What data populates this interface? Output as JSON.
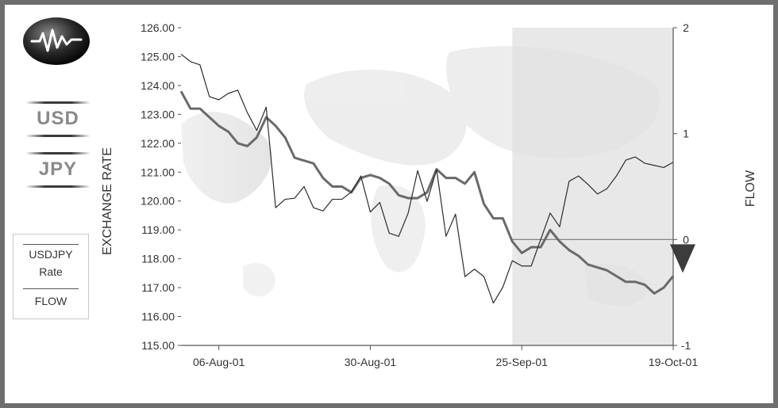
{
  "currency_pair": {
    "base": "USD",
    "quote": "JPY"
  },
  "legend": {
    "line1": "USDJPY",
    "line2": "Rate",
    "line3": "FLOW"
  },
  "icons": {
    "logo": "waveform-icon",
    "flow_marker": "down-arrow-icon"
  },
  "colors": {
    "rate_line": "#6a6a6a",
    "flow_line": "#2c2c2c",
    "shade": "#e0e0e0",
    "arrow": "#3c3c3c"
  },
  "chart_data": {
    "type": "line",
    "xlabel": "",
    "ylabel": "EXCHANGE RATE",
    "y2label": "FLOW",
    "ylim": [
      115,
      126
    ],
    "y2lim": [
      -1,
      2
    ],
    "yticks": [
      "115.00",
      "116.00",
      "117.00",
      "118.00",
      "119.00",
      "120.00",
      "121.00",
      "122.00",
      "123.00",
      "124.00",
      "125.00",
      "126.00"
    ],
    "y2ticks": [
      "-1",
      "0",
      "1",
      "2"
    ],
    "x_tick_labels": [
      "06-Aug-01",
      "30-Aug-01",
      "25-Sep-01",
      "19-Oct-01"
    ],
    "x_tick_index": [
      4,
      20,
      36,
      52
    ],
    "flow_zero_line": 0,
    "shaded_region_start_index": 35,
    "shaded_region_end_index": 52,
    "series": [
      {
        "name": "USDJPY Rate",
        "axis": "left",
        "values": [
          123.8,
          123.2,
          123.2,
          122.9,
          122.6,
          122.4,
          122.0,
          121.9,
          122.2,
          122.9,
          122.6,
          122.2,
          121.5,
          121.4,
          121.3,
          120.8,
          120.5,
          120.5,
          120.3,
          120.8,
          120.9,
          120.8,
          120.6,
          120.2,
          120.1,
          120.1,
          120.3,
          121.1,
          120.8,
          120.8,
          120.6,
          121.0,
          119.9,
          119.4,
          119.4,
          118.6,
          118.2,
          118.4,
          118.4,
          119.0,
          118.6,
          118.3,
          118.1,
          117.8,
          117.7,
          117.6,
          117.4,
          117.2,
          117.2,
          117.1,
          116.8,
          117.0,
          117.4
        ]
      },
      {
        "name": "FLOW",
        "axis": "right",
        "values": [
          1.75,
          1.68,
          1.65,
          1.35,
          1.32,
          1.38,
          1.41,
          1.2,
          1.03,
          1.25,
          0.3,
          0.38,
          0.39,
          0.5,
          0.3,
          0.27,
          0.38,
          0.38,
          0.45,
          0.6,
          0.26,
          0.35,
          0.06,
          0.03,
          0.25,
          0.65,
          0.36,
          0.66,
          0.03,
          0.24,
          -0.35,
          -0.28,
          -0.35,
          -0.6,
          -0.45,
          -0.2,
          -0.25,
          -0.25,
          0.0,
          0.25,
          0.12,
          0.55,
          0.6,
          0.52,
          0.43,
          0.48,
          0.6,
          0.75,
          0.78,
          0.72,
          0.7,
          0.68,
          0.73
        ]
      }
    ]
  }
}
